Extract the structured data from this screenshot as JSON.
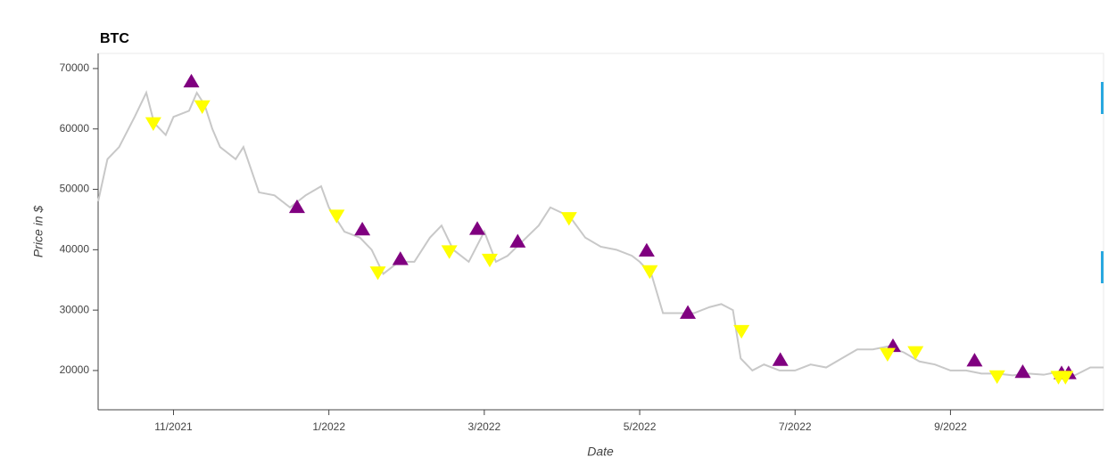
{
  "chart_data": {
    "type": "line",
    "title": "BTC",
    "xlabel": "Date",
    "ylabel": "Price in $",
    "xlim": [
      10.03,
      22.97
    ],
    "ylim": [
      13500,
      72500
    ],
    "xticks": [
      {
        "value": 11,
        "label": "11/2021"
      },
      {
        "value": 13,
        "label": "1/2022"
      },
      {
        "value": 15,
        "label": "3/2022"
      },
      {
        "value": 17,
        "label": "5/2022"
      },
      {
        "value": 19,
        "label": "7/2022"
      },
      {
        "value": 21,
        "label": "9/2022"
      }
    ],
    "yticks": [
      20000,
      30000,
      40000,
      50000,
      60000,
      70000
    ],
    "grid": false,
    "series": [
      {
        "marker": "line",
        "color": "#c8c8c8",
        "x": [
          10.03,
          10.15,
          10.3,
          10.5,
          10.65,
          10.75,
          10.9,
          11.0,
          11.2,
          11.3,
          11.4,
          11.5,
          11.6,
          11.8,
          11.9,
          12.1,
          12.3,
          12.5,
          12.7,
          12.9,
          13.0,
          13.2,
          13.4,
          13.55,
          13.7,
          13.9,
          14.1,
          14.3,
          14.45,
          14.6,
          14.8,
          15.0,
          15.15,
          15.3,
          15.5,
          15.7,
          15.85,
          16.1,
          16.3,
          16.5,
          16.7,
          16.9,
          17.0,
          17.15,
          17.3,
          17.5,
          17.7,
          17.9,
          18.05,
          18.2,
          18.3,
          18.45,
          18.6,
          18.8,
          19.0,
          19.2,
          19.4,
          19.6,
          19.8,
          20.0,
          20.2,
          20.4,
          20.6,
          20.8,
          21.0,
          21.2,
          21.4,
          21.6,
          21.8,
          22.0,
          22.2,
          22.4,
          22.6,
          22.8,
          22.97
        ],
        "values": [
          48000,
          55000,
          57000,
          62000,
          66000,
          61000,
          59000,
          62000,
          63000,
          66000,
          64000,
          60000,
          57000,
          55000,
          57000,
          49500,
          49000,
          47000,
          49000,
          50500,
          47000,
          43000,
          42000,
          40000,
          36000,
          38000,
          38000,
          42000,
          44000,
          40000,
          38000,
          43000,
          38000,
          39000,
          41500,
          44000,
          47000,
          45500,
          42000,
          40500,
          40000,
          39000,
          38000,
          36000,
          29500,
          29500,
          29500,
          30500,
          31000,
          30000,
          22000,
          20000,
          21000,
          20000,
          20000,
          21000,
          20500,
          22000,
          23500,
          23500,
          24000,
          23000,
          21500,
          21000,
          20000,
          20000,
          19500,
          19500,
          19200,
          19500,
          19300,
          19800,
          19200,
          20500,
          20500
        ]
      },
      {
        "marker": "triangle-up",
        "color": "#800080",
        "x": [
          11.23,
          12.59,
          13.43,
          13.92,
          14.91,
          15.43,
          17.09,
          17.62,
          18.81,
          20.26,
          21.31,
          21.93,
          22.43,
          22.52
        ],
        "values": [
          67800,
          47000,
          43300,
          38400,
          43400,
          41300,
          39800,
          29500,
          21700,
          24000,
          21600,
          19700,
          19500,
          19500
        ]
      },
      {
        "marker": "triangle-down",
        "color": "#ffff00",
        "x": [
          10.74,
          11.37,
          13.1,
          13.63,
          14.55,
          15.07,
          16.09,
          17.13,
          18.31,
          20.19,
          20.55,
          21.6,
          22.39,
          22.48
        ],
        "values": [
          61000,
          63800,
          45700,
          36300,
          39800,
          38400,
          45300,
          36500,
          26600,
          22800,
          23100,
          19100,
          19000,
          19000
        ]
      }
    ]
  }
}
